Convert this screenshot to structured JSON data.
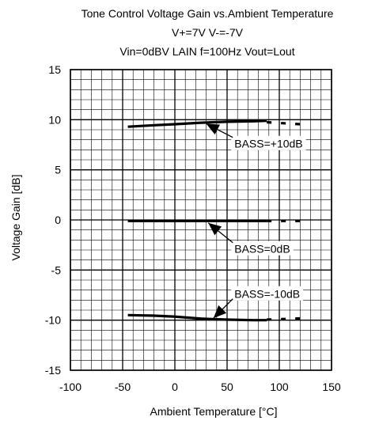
{
  "chart_data": {
    "type": "line",
    "title_lines": [
      "Tone Control  Voltage Gain vs.Ambient Temperature",
      "V+=7V V-=-7V",
      "Vin=0dBV LAIN f=100Hz Vout=Lout"
    ],
    "xlabel": "Ambient Temperature [°C]",
    "ylabel": "Voltage Gain [dB]",
    "xlim": [
      -100,
      150
    ],
    "ylim": [
      -15,
      15
    ],
    "xticks": [
      -100,
      -50,
      0,
      50,
      100,
      150
    ],
    "yticks": [
      15,
      10,
      5,
      0,
      -5,
      -10,
      -15
    ],
    "grid": true,
    "series": [
      {
        "name": "BASS=+10dB",
        "solid": [
          [
            -45,
            9.3
          ],
          [
            -20,
            9.45
          ],
          [
            0,
            9.55
          ],
          [
            25,
            9.7
          ],
          [
            50,
            9.8
          ],
          [
            75,
            9.85
          ],
          [
            88,
            9.9
          ]
        ],
        "dashed": [
          [
            88,
            9.75
          ],
          [
            128,
            9.5
          ]
        ]
      },
      {
        "name": "BASS=0dB",
        "solid": [
          [
            -45,
            -0.1
          ],
          [
            0,
            -0.1
          ],
          [
            50,
            -0.1
          ],
          [
            88,
            -0.1
          ]
        ],
        "dashed": [
          [
            88,
            -0.1
          ],
          [
            128,
            -0.1
          ]
        ]
      },
      {
        "name": "BASS=-10dB",
        "solid": [
          [
            -45,
            -9.5
          ],
          [
            -20,
            -9.55
          ],
          [
            0,
            -9.65
          ],
          [
            25,
            -9.85
          ],
          [
            35,
            -9.9
          ],
          [
            50,
            -9.95
          ],
          [
            75,
            -10.0
          ],
          [
            88,
            -10.0
          ]
        ],
        "dashed": [
          [
            88,
            -9.95
          ],
          [
            128,
            -9.8
          ]
        ]
      }
    ],
    "annotations": [
      {
        "text": "BASS=+10dB",
        "data": [
          57,
          7.6
        ],
        "arrow_to": [
          30,
          9.6
        ]
      },
      {
        "text": "BASS=0dB",
        "data": [
          57,
          -2.9
        ],
        "arrow_to": [
          32,
          -0.3
        ]
      },
      {
        "text": "BASS=-10dB",
        "data": [
          57,
          -7.4
        ],
        "arrow_to": [
          37,
          -9.8
        ]
      }
    ]
  }
}
